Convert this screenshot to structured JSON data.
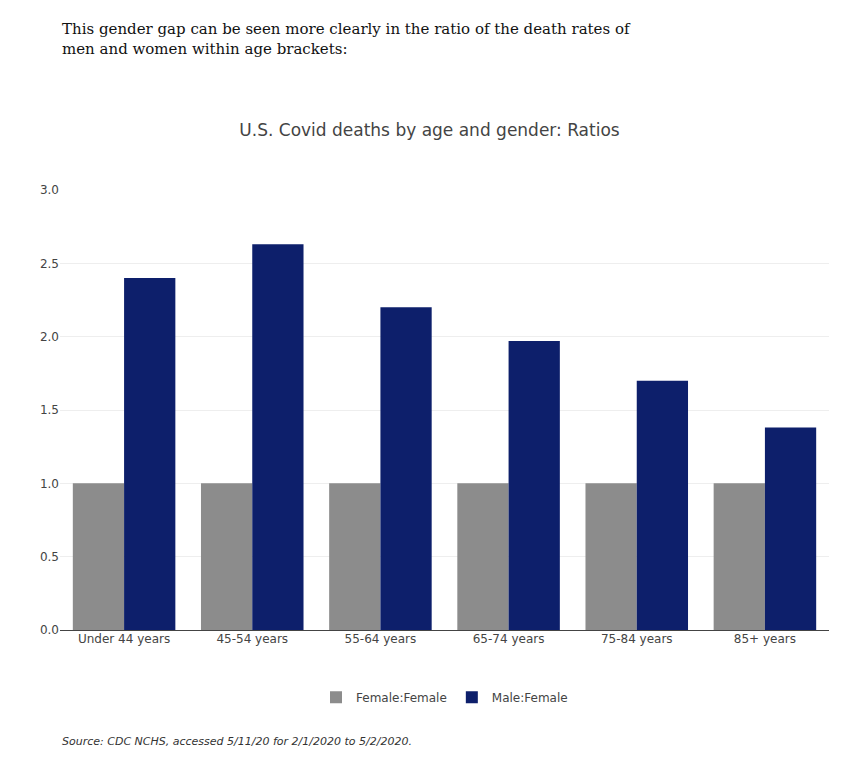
{
  "chart_data": {
    "type": "bar",
    "title": "U.S. Covid deaths by age and gender: Ratios",
    "subtitle": "This gender gap can be seen more clearly in the ratio of the death rates of\nmen and women within age brackets:",
    "annotations": [
      "Source: CDC NCHS, accessed 5/11/20 for 2/1/2020 to 5/2/2020."
    ],
    "categories": [
      "Under 44 years",
      "45-54 years",
      "55-64 years",
      "65-74 years",
      "75-84 years",
      "85+ years"
    ],
    "series": [
      {
        "name": "Female:Female",
        "color": "#8c8c8c",
        "values": [
          1.0,
          1.0,
          1.0,
          1.0,
          1.0,
          1.0
        ]
      },
      {
        "name": "Male:Female",
        "color": "#0d1f6b",
        "values": [
          2.4,
          2.63,
          2.2,
          1.97,
          1.7,
          1.38
        ]
      }
    ],
    "ylim": [
      0,
      3
    ],
    "yticks": [
      {
        "value": 0,
        "label": "0.0"
      },
      0.5,
      {
        "value": 1,
        "label": "1.0"
      },
      1.5,
      {
        "value": 2,
        "label": "2.0"
      },
      2.5,
      {
        "value": 3,
        "label": "3.0"
      }
    ],
    "grid": true,
    "legend": "bottom"
  }
}
